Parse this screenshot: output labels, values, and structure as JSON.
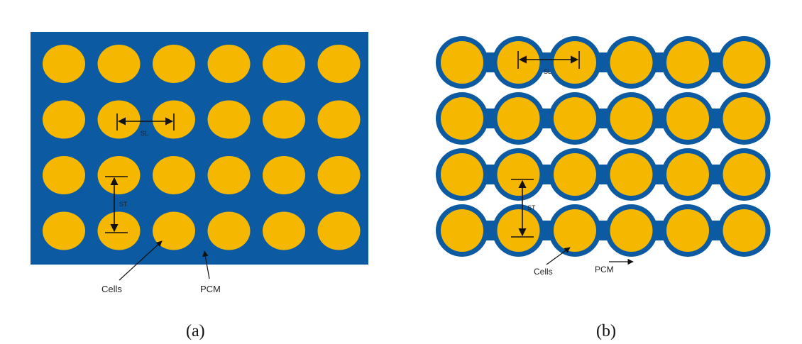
{
  "colors": {
    "cell": "#f6b700",
    "pcm": "#0b5aa2",
    "arrow": "#111111",
    "background": "#ffffff"
  },
  "panel_a": {
    "caption": "(a)",
    "grid": {
      "rows": 4,
      "cols": 6,
      "cells_touching": false
    },
    "label_cells": "Cells",
    "label_pcm": "PCM",
    "dim_sl": "SL",
    "dim_st": "ST"
  },
  "panel_b": {
    "caption": "(b)",
    "grid": {
      "rows": 4,
      "cols": 6,
      "cells_touching": true
    },
    "label_cells": "Cells",
    "label_pcm": "PCM",
    "dim_sl": "SL",
    "dim_st": "ST"
  }
}
